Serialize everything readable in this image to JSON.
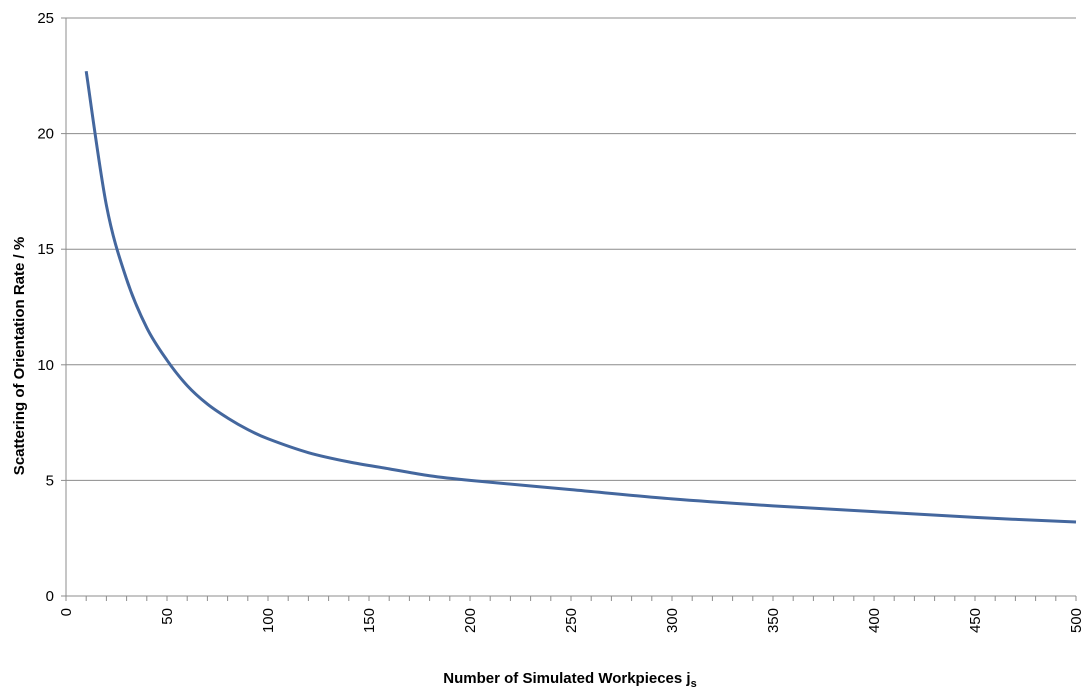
{
  "chart_data": {
    "type": "line",
    "title": "",
    "xlabel": "Number of Simulated Workpieces j",
    "xlabel_subscript": "s",
    "ylabel": "Scattering of  Orientation Rate / %",
    "xlim": [
      0,
      500
    ],
    "ylim": [
      0,
      25
    ],
    "x_ticks": [
      "0",
      "50",
      "100",
      "150",
      "200",
      "250",
      "300",
      "350",
      "400",
      "450",
      "500"
    ],
    "y_ticks": [
      "0",
      "5",
      "10",
      "15",
      "20",
      "25"
    ],
    "grid": "horizontal",
    "legend": "none",
    "series": [
      {
        "color": "#44679e",
        "x": [
          10,
          20,
          30,
          40,
          50,
          60,
          70,
          80,
          90,
          100,
          120,
          140,
          160,
          180,
          200,
          250,
          300,
          350,
          400,
          450,
          500
        ],
        "y": [
          22.7,
          16.9,
          13.7,
          11.6,
          10.2,
          9.1,
          8.3,
          7.7,
          7.2,
          6.8,
          6.2,
          5.8,
          5.5,
          5.2,
          5.0,
          4.6,
          4.2,
          3.9,
          3.65,
          3.4,
          3.2
        ]
      }
    ]
  }
}
